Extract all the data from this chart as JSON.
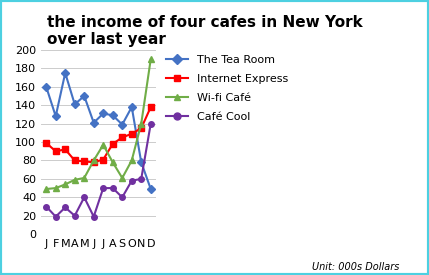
{
  "title": "the income of four cafes in New York\nover last year",
  "months": [
    "J",
    "F",
    "M",
    "A",
    "M",
    "J",
    "J",
    "A",
    "S",
    "O",
    "N",
    "D"
  ],
  "series": {
    "The Tea Room": [
      160,
      128,
      175,
      141,
      150,
      121,
      131,
      129,
      119,
      138,
      78,
      49
    ],
    "Internet Express": [
      99,
      90,
      92,
      80,
      79,
      78,
      81,
      98,
      105,
      109,
      115,
      138
    ],
    "Wi-fi Cafe": [
      49,
      50,
      54,
      59,
      61,
      80,
      97,
      78,
      61,
      80,
      120,
      190
    ],
    "Cafe Cool": [
      30,
      19,
      29,
      20,
      40,
      19,
      50,
      50,
      40,
      58,
      60,
      120
    ]
  },
  "series_labels": {
    "The Tea Room": "The Tea Room",
    "Internet Express": "Internet Express",
    "Wi-fi Cafe": "Wi-fi Café",
    "Cafe Cool": "Café Cool"
  },
  "colors": {
    "The Tea Room": "#4472C4",
    "Internet Express": "#FF0000",
    "Wi-fi Cafe": "#70AD47",
    "Cafe Cool": "#7030A0"
  },
  "markers": {
    "The Tea Room": "D",
    "Internet Express": "s",
    "Wi-fi Cafe": "^",
    "Cafe Cool": "o"
  },
  "ylim": [
    0,
    200
  ],
  "yticks": [
    0,
    20,
    40,
    60,
    80,
    100,
    120,
    140,
    160,
    180,
    200
  ],
  "unit_label": "Unit: 000s Dollars",
  "background_color": "#FFFFFF",
  "border_color": "#4DD0E1",
  "title_fontsize": 11,
  "legend_fontsize": 8,
  "tick_fontsize": 8
}
